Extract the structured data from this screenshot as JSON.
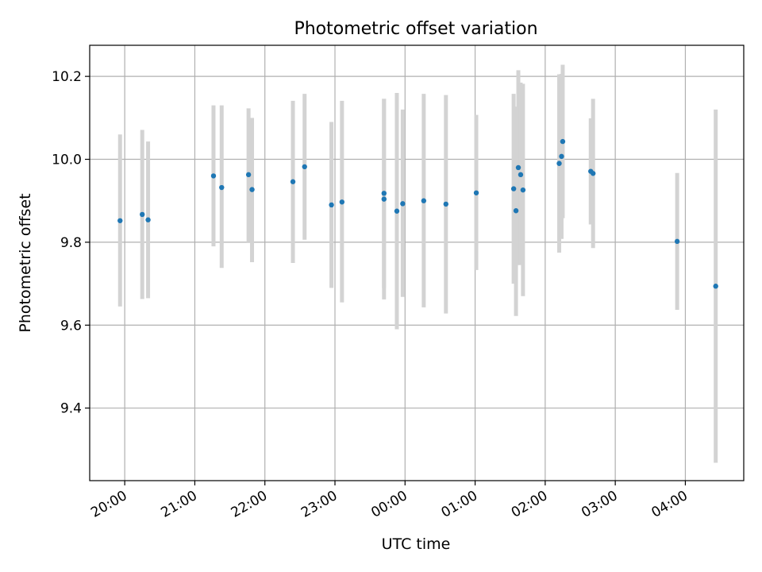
{
  "chart_data": {
    "type": "scatter",
    "title": "Photometric offset variation",
    "xlabel": "UTC time",
    "ylabel": "Photometric offset",
    "grid": true,
    "legend": "none",
    "x_axis": {
      "ticks": [
        {
          "hours": 20,
          "label": "20:00"
        },
        {
          "hours": 21,
          "label": "21:00"
        },
        {
          "hours": 22,
          "label": "22:00"
        },
        {
          "hours": 23,
          "label": "23:00"
        },
        {
          "hours": 24,
          "label": "00:00"
        },
        {
          "hours": 25,
          "label": "01:00"
        },
        {
          "hours": 26,
          "label": "02:00"
        },
        {
          "hours": 27,
          "label": "03:00"
        },
        {
          "hours": 28,
          "label": "04:00"
        }
      ],
      "range": [
        "19:30",
        "04:50"
      ]
    },
    "y_axis": {
      "ticks": [
        9.4,
        9.6,
        9.8,
        10.0,
        10.2
      ],
      "tick_labels": [
        "9.4",
        "9.6",
        "9.8",
        "10.0",
        "10.2"
      ],
      "range": [
        9.225,
        10.275
      ]
    },
    "colors": {
      "points": "#1f77b4",
      "errorbars": "#d3d3d3",
      "grid": "#b0b0b0"
    },
    "points": [
      {
        "time": "19:56",
        "y": 9.852,
        "low": 9.645,
        "high": 10.06
      },
      {
        "time": "20:15",
        "y": 9.867,
        "low": 9.663,
        "high": 10.071
      },
      {
        "time": "20:20",
        "y": 9.854,
        "low": 9.665,
        "high": 10.043
      },
      {
        "time": "21:16",
        "y": 9.96,
        "low": 9.79,
        "high": 10.13
      },
      {
        "time": "21:23",
        "y": 9.932,
        "low": 9.738,
        "high": 10.13
      },
      {
        "time": "21:46",
        "y": 9.963,
        "low": 9.8,
        "high": 10.123
      },
      {
        "time": "21:49",
        "y": 9.927,
        "low": 9.752,
        "high": 10.1
      },
      {
        "time": "22:24",
        "y": 9.946,
        "low": 9.75,
        "high": 10.141
      },
      {
        "time": "22:34",
        "y": 9.982,
        "low": 9.806,
        "high": 10.158
      },
      {
        "time": "22:57",
        "y": 9.89,
        "low": 9.69,
        "high": 10.09
      },
      {
        "time": "23:06",
        "y": 9.897,
        "low": 9.655,
        "high": 10.141
      },
      {
        "time": "23:42",
        "y": 9.918,
        "low": 9.69,
        "high": 10.146
      },
      {
        "time": "23:42",
        "y": 9.904,
        "low": 9.662,
        "high": 10.146
      },
      {
        "time": "23:53",
        "y": 9.875,
        "low": 9.59,
        "high": 10.16
      },
      {
        "time": "23:58",
        "y": 9.893,
        "low": 9.668,
        "high": 10.12
      },
      {
        "time": "00:16",
        "y": 9.9,
        "low": 9.643,
        "high": 10.158
      },
      {
        "time": "00:35",
        "y": 9.892,
        "low": 9.628,
        "high": 10.155
      },
      {
        "time": "01:01",
        "y": 9.919,
        "low": 9.733,
        "high": 10.107
      },
      {
        "time": "01:33",
        "y": 9.929,
        "low": 9.7,
        "high": 10.158
      },
      {
        "time": "01:35",
        "y": 9.876,
        "low": 9.622,
        "high": 10.127
      },
      {
        "time": "01:37",
        "y": 9.98,
        "low": 9.745,
        "high": 10.215
      },
      {
        "time": "01:39",
        "y": 9.963,
        "low": 9.745,
        "high": 10.185
      },
      {
        "time": "01:41",
        "y": 9.926,
        "low": 9.67,
        "high": 10.182
      },
      {
        "time": "02:12",
        "y": 9.99,
        "low": 9.775,
        "high": 10.205
      },
      {
        "time": "02:14",
        "y": 10.007,
        "low": 9.808,
        "high": 10.206
      },
      {
        "time": "02:15",
        "y": 10.043,
        "low": 9.858,
        "high": 10.228
      },
      {
        "time": "02:39",
        "y": 9.971,
        "low": 9.843,
        "high": 10.099
      },
      {
        "time": "02:41",
        "y": 9.966,
        "low": 9.786,
        "high": 10.146
      },
      {
        "time": "03:53",
        "y": 9.802,
        "low": 9.637,
        "high": 9.967
      },
      {
        "time": "04:26",
        "y": 9.694,
        "low": 9.268,
        "high": 10.12
      }
    ]
  }
}
